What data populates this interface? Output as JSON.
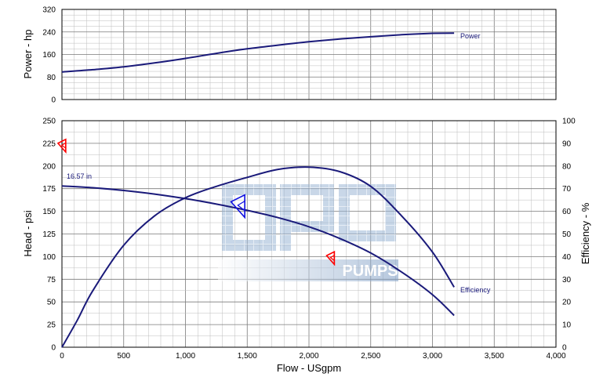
{
  "chart_data": [
    {
      "type": "line",
      "panel": "top",
      "ylabel": "Power - hp",
      "ylim": [
        0,
        320
      ],
      "yticks": [
        "0",
        "80",
        "160",
        "240",
        "320"
      ],
      "xlim": [
        0,
        4000
      ],
      "grid": true,
      "series": [
        {
          "name": "Power",
          "x": [
            0,
            250,
            500,
            750,
            1000,
            1250,
            1500,
            1750,
            2000,
            2250,
            2500,
            2750,
            3000,
            3175
          ],
          "y": [
            98,
            106,
            116,
            130,
            146,
            164,
            180,
            193,
            205,
            215,
            223,
            230,
            235,
            236
          ]
        }
      ]
    },
    {
      "type": "line",
      "panel": "bottom",
      "xlabel": "Flow - USgpm",
      "ylabel": "Head - psi",
      "y2label": "Efficiency - %",
      "xlim": [
        0,
        4000
      ],
      "ylim": [
        0,
        250
      ],
      "y2lim": [
        0,
        100
      ],
      "xticks": [
        "0",
        "500",
        "1,000",
        "1,500",
        "2,000",
        "2,500",
        "3,000",
        "3,500",
        "4,000"
      ],
      "yticks": [
        "0",
        "25",
        "50",
        "75",
        "100",
        "125",
        "150",
        "175",
        "200",
        "225",
        "250"
      ],
      "y2ticks": [
        "0",
        "10",
        "20",
        "30",
        "40",
        "50",
        "60",
        "70",
        "80",
        "90",
        "100"
      ],
      "grid": true,
      "series": [
        {
          "name": "16.57 in",
          "axis": "left",
          "x": [
            0,
            250,
            500,
            750,
            1000,
            1250,
            1500,
            1750,
            2000,
            2250,
            2500,
            2750,
            3000,
            3175
          ],
          "y": [
            178,
            176,
            173,
            169,
            164,
            158,
            151,
            143,
            133,
            120,
            104,
            83,
            58,
            35
          ]
        },
        {
          "name": "Efficiency",
          "axis": "right",
          "x": [
            0,
            125,
            250,
            500,
            750,
            1000,
            1250,
            1500,
            1750,
            2000,
            2250,
            2500,
            2750,
            3000,
            3175
          ],
          "y": [
            0,
            12,
            25,
            45,
            58,
            66,
            71,
            75,
            78.5,
            79.5,
            77.5,
            71,
            58,
            42,
            26.5
          ]
        }
      ],
      "markers": [
        {
          "color": "#ff0000",
          "axis": "left",
          "x": 25,
          "y": 222
        },
        {
          "color": "#1010e0",
          "axis": "left",
          "x": 1470,
          "y": 155
        },
        {
          "color": "#ff0000",
          "axis": "left",
          "x": 2200,
          "y": 98
        }
      ]
    }
  ],
  "watermark": {
    "text": "gpo",
    "subtext": "PUMPS"
  }
}
